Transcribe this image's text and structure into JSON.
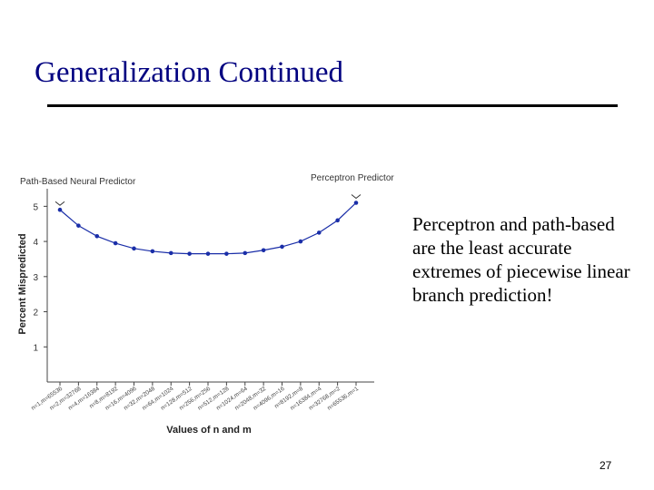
{
  "slide": {
    "title": "Generalization Continued",
    "body": "Perceptron and path-based are the least accurate extremes of piecewise linear branch prediction!",
    "page_number": "27"
  },
  "chart_data": {
    "type": "line",
    "left_label": "Path-Based Neural Predictor",
    "right_label": "Perceptron Predictor",
    "xlabel": "Values of n and m",
    "ylabel": "Percent Mispredicted",
    "yticks": [
      "1",
      "2",
      "3",
      "4",
      "5"
    ],
    "ylim": [
      0,
      5.5
    ],
    "grid": false,
    "categories": [
      "n=1,m=65536",
      "n=2,m=32768",
      "n=4,m=16384",
      "n=8,m=8192",
      "n=16,m=4096",
      "n=32,m=2048",
      "n=64,m=1024",
      "n=128,m=512",
      "n=256,m=256",
      "n=512,m=128",
      "n=1024,m=64",
      "n=2048,m=32",
      "n=4096,m=16",
      "n=8192,m=8",
      "n=16384,m=4",
      "n=32768,m=2",
      "n=65536,m=1"
    ],
    "series": [
      {
        "values": [
          4.9,
          4.45,
          4.15,
          3.95,
          3.8,
          3.72,
          3.67,
          3.65,
          3.65,
          3.65,
          3.67,
          3.75,
          3.85,
          4.0,
          4.25,
          4.6,
          5.1
        ],
        "color": "#1a2ea8"
      }
    ]
  }
}
